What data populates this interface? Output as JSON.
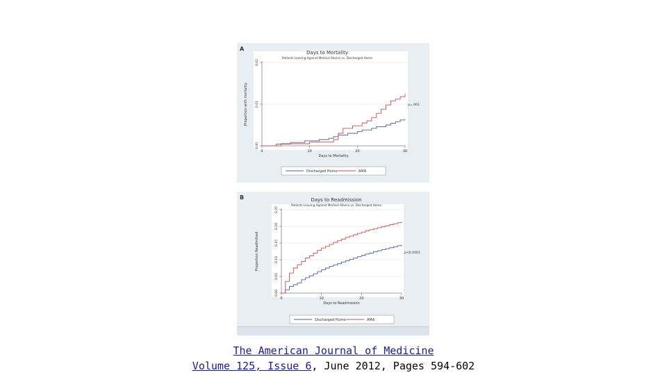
{
  "chart_data": [
    {
      "type": "line",
      "panel_label": "A",
      "title": "Days to Mortality",
      "subtitle": "Patients Leaving Against Medical Advice vs. Discharged Home",
      "xlabel": "Days to Mortality",
      "ylabel": "Proportion with mortality",
      "xlim": [
        0,
        30
      ],
      "ylim": [
        0,
        0.02
      ],
      "xticks": [
        0,
        10,
        20,
        30
      ],
      "xtick_labels": [
        "0",
        "10",
        "20",
        "30"
      ],
      "yticks": [
        0,
        0.01,
        0.02
      ],
      "ytick_labels": [
        "0.00",
        "0.01",
        "0.02"
      ],
      "annotation": "p=.001",
      "legend_position": "bottom",
      "series": [
        {
          "name": "Discharged Home",
          "color": "#4a5f9e",
          "x": [
            0,
            3,
            6,
            9,
            12,
            14,
            15,
            16,
            18,
            20,
            21,
            23,
            24,
            26,
            27,
            28,
            29,
            30
          ],
          "y": [
            0,
            0.0004,
            0.0008,
            0.0012,
            0.0015,
            0.0018,
            0.0022,
            0.0026,
            0.003,
            0.0034,
            0.0038,
            0.0042,
            0.0046,
            0.005,
            0.0054,
            0.0058,
            0.0062,
            0.0064
          ]
        },
        {
          "name": "AMA",
          "color": "#c0504d",
          "x": [
            0,
            4,
            10,
            15,
            16,
            17,
            19,
            21,
            22,
            23,
            24,
            25,
            26,
            27,
            28,
            29,
            30
          ],
          "y": [
            0,
            0.0005,
            0.0009,
            0.0015,
            0.003,
            0.0042,
            0.0048,
            0.0055,
            0.006,
            0.0068,
            0.0078,
            0.0088,
            0.0098,
            0.0108,
            0.0112,
            0.0118,
            0.0125
          ]
        }
      ]
    },
    {
      "type": "line",
      "panel_label": "B",
      "title": "Days to Readmission",
      "subtitle": "Patients Leaving Against Medical Advice vs. Discharged Home",
      "xlabel": "Days to Readmission",
      "ylabel": "Proportion Readmitted",
      "xlim": [
        0,
        30
      ],
      "ylim": [
        0,
        0.25
      ],
      "xticks": [
        0,
        10,
        20,
        30
      ],
      "xtick_labels": [
        "0",
        "10",
        "20",
        "30"
      ],
      "yticks": [
        0,
        0.05,
        0.1,
        0.15,
        0.2,
        0.25
      ],
      "ytick_labels": [
        "0.00",
        "0.05",
        "0.10",
        "0.15",
        "0.20",
        "0.25"
      ],
      "annotation": "p<0.0001",
      "legend_position": "bottom",
      "series": [
        {
          "name": "Discharged Home",
          "color": "#4a5f9e",
          "x": [
            0,
            1,
            2,
            3,
            4,
            5,
            6,
            7,
            8,
            9,
            10,
            11,
            12,
            13,
            14,
            15,
            16,
            17,
            18,
            19,
            20,
            21,
            22,
            23,
            24,
            25,
            26,
            27,
            28,
            29,
            30
          ],
          "y": [
            0,
            0.01,
            0.02,
            0.025,
            0.03,
            0.04,
            0.046,
            0.052,
            0.058,
            0.064,
            0.07,
            0.075,
            0.08,
            0.084,
            0.088,
            0.093,
            0.097,
            0.101,
            0.105,
            0.109,
            0.113,
            0.117,
            0.12,
            0.124,
            0.127,
            0.13,
            0.133,
            0.136,
            0.139,
            0.142,
            0.145
          ]
        },
        {
          "name": "AMA",
          "color": "#c0504d",
          "x": [
            0,
            1,
            2,
            3,
            4,
            5,
            6,
            7,
            8,
            9,
            10,
            11,
            12,
            13,
            14,
            15,
            16,
            17,
            18,
            19,
            20,
            21,
            22,
            23,
            24,
            25,
            26,
            27,
            28,
            29,
            30
          ],
          "y": [
            0,
            0.035,
            0.06,
            0.075,
            0.085,
            0.095,
            0.105,
            0.112,
            0.12,
            0.128,
            0.135,
            0.14,
            0.146,
            0.152,
            0.157,
            0.162,
            0.167,
            0.171,
            0.175,
            0.179,
            0.183,
            0.187,
            0.19,
            0.193,
            0.196,
            0.199,
            0.202,
            0.205,
            0.208,
            0.211,
            0.214
          ]
        }
      ]
    }
  ],
  "caption": {
    "journal": "The American Journal of Medicine",
    "volume_issue": "Volume 125, Issue 6",
    "rest": ", June 2012, Pages 594-602"
  }
}
